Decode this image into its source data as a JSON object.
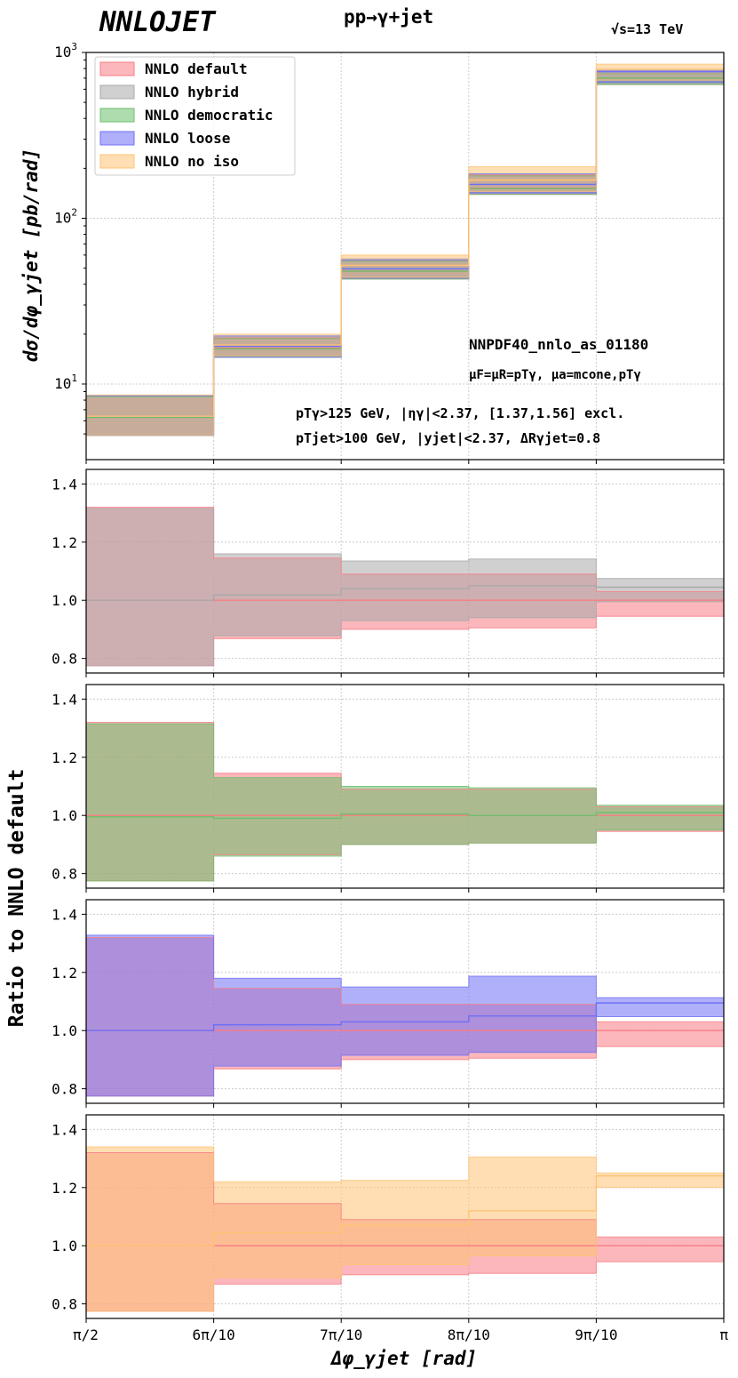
{
  "header": {
    "logo": "NNLOJET",
    "process": "pp→γ+jet",
    "energy": "√s=13 TeV"
  },
  "labels": {
    "main_ylabel": "dσ/dφ_γjet [pb/rad]",
    "ratio_ylabel": "Ratio to NNLO default",
    "xlabel": "Δφ_γjet [rad]",
    "pdf": "NNPDF40_nnlo_as_01180",
    "scales": "μF=μR=pTγ, μa=mcone,pTγ",
    "cuts1": "pTγ>125 GeV, |ηγ|<2.37, [1.37,1.56] excl.",
    "cuts2": "pTjet>100 GeV, |yjet|<2.37, ΔRγjet=0.8"
  },
  "colors": {
    "default": "#f87c84",
    "hybrid": "#a9a9a9",
    "democratic": "#6cbf6c",
    "loose": "#6f6ff5",
    "noiso": "#ffc375"
  },
  "chart_data": [
    {
      "type": "area",
      "panel": "main",
      "x_edges_rad": [
        1.5708,
        1.885,
        2.1991,
        2.5133,
        2.8274,
        3.1416
      ],
      "x_tick_labels": [
        "π/2",
        "6π/10",
        "7π/10",
        "8π/10",
        "9π/10",
        "π"
      ],
      "yscale": "log",
      "ylim": [
        3.5,
        1000
      ],
      "y_tick_labels": [
        "10¹",
        "10²",
        "10³"
      ],
      "legend_position": "top-left",
      "series": [
        {
          "name": "NNLO default",
          "color_key": "default",
          "central": [
            6.4,
            16.5,
            48,
            152,
            700
          ],
          "low": [
            4.9,
            14.5,
            43,
            140,
            640
          ],
          "high": [
            8.5,
            19,
            56,
            182,
            745
          ]
        },
        {
          "name": "NNLO hybrid",
          "color_key": "hybrid",
          "central": [
            6.4,
            16.8,
            50,
            160,
            720
          ],
          "low": [
            4.9,
            14.5,
            43,
            141,
            645
          ],
          "high": [
            8.5,
            19.2,
            57,
            185,
            760
          ]
        },
        {
          "name": "NNLO democratic",
          "color_key": "democratic",
          "central": [
            6.3,
            16.3,
            48,
            151,
            700
          ],
          "low": [
            4.9,
            14.6,
            43,
            139,
            640
          ],
          "high": [
            8.4,
            18.8,
            55,
            180,
            745
          ]
        },
        {
          "name": "NNLO loose",
          "color_key": "loose",
          "central": [
            6.4,
            16.9,
            49.5,
            160,
            765
          ],
          "low": [
            4.9,
            14.5,
            43.5,
            142,
            660
          ],
          "high": [
            8.5,
            19.5,
            56,
            185,
            780
          ]
        },
        {
          "name": "NNLO no iso",
          "color_key": "noiso",
          "central": [
            6.4,
            17.2,
            52,
            170,
            790
          ],
          "low": [
            4.9,
            14.8,
            44,
            145,
            680
          ],
          "high": [
            8.6,
            20,
            60,
            205,
            850
          ]
        }
      ]
    },
    {
      "type": "area",
      "panel": "ratio-hybrid",
      "ylim": [
        0.75,
        1.45
      ],
      "y_ticks": [
        0.8,
        1.0,
        1.2,
        1.4
      ],
      "series": [
        {
          "name": "NNLO default",
          "color_key": "default",
          "central": [
            1.0,
            1.0,
            1.0,
            1.0,
            1.0
          ],
          "low": [
            0.775,
            0.868,
            0.9,
            0.905,
            0.945
          ],
          "high": [
            1.32,
            1.145,
            1.09,
            1.09,
            1.03
          ]
        },
        {
          "name": "NNLO hybrid",
          "color_key": "hybrid",
          "central": [
            1.0,
            1.018,
            1.04,
            1.05,
            1.045
          ],
          "low": [
            0.775,
            0.878,
            0.93,
            0.94,
            0.995
          ],
          "high": [
            1.315,
            1.16,
            1.135,
            1.142,
            1.075
          ]
        }
      ]
    },
    {
      "type": "area",
      "panel": "ratio-democratic",
      "ylim": [
        0.75,
        1.45
      ],
      "y_ticks": [
        0.8,
        1.0,
        1.2,
        1.4
      ],
      "series": [
        {
          "name": "NNLO default",
          "color_key": "default",
          "central": [
            1.0,
            1.0,
            1.0,
            1.0,
            1.0
          ],
          "low": [
            0.775,
            0.865,
            0.9,
            0.905,
            0.945
          ],
          "high": [
            1.32,
            1.145,
            1.09,
            1.09,
            1.03
          ]
        },
        {
          "name": "NNLO democratic",
          "color_key": "democratic",
          "central": [
            0.995,
            0.99,
            1.005,
            1.0,
            1.01
          ],
          "low": [
            0.775,
            0.86,
            0.9,
            0.905,
            0.95
          ],
          "high": [
            1.315,
            1.13,
            1.1,
            1.095,
            1.035
          ]
        }
      ]
    },
    {
      "type": "area",
      "panel": "ratio-loose",
      "ylim": [
        0.75,
        1.45
      ],
      "y_ticks": [
        0.8,
        1.0,
        1.2,
        1.4
      ],
      "series": [
        {
          "name": "NNLO default",
          "color_key": "default",
          "central": [
            1.0,
            1.0,
            1.0,
            1.0,
            1.0
          ],
          "low": [
            0.775,
            0.868,
            0.9,
            0.905,
            0.945
          ],
          "high": [
            1.32,
            1.145,
            1.09,
            1.09,
            1.03
          ]
        },
        {
          "name": "NNLO loose",
          "color_key": "loose",
          "central": [
            1.0,
            1.02,
            1.03,
            1.05,
            1.095
          ],
          "low": [
            0.775,
            0.878,
            0.915,
            0.925,
            1.048
          ],
          "high": [
            1.328,
            1.18,
            1.15,
            1.187,
            1.113
          ]
        }
      ]
    },
    {
      "type": "area",
      "panel": "ratio-noiso",
      "ylim": [
        0.75,
        1.45
      ],
      "y_ticks": [
        0.8,
        1.0,
        1.2,
        1.4
      ],
      "series": [
        {
          "name": "NNLO default",
          "color_key": "default",
          "central": [
            1.0,
            1.0,
            1.0,
            1.0,
            1.0
          ],
          "low": [
            0.775,
            0.868,
            0.9,
            0.905,
            0.945
          ],
          "high": [
            1.32,
            1.145,
            1.09,
            1.09,
            1.03
          ]
        },
        {
          "name": "NNLO no iso",
          "color_key": "noiso",
          "central": [
            1.0,
            1.045,
            1.07,
            1.12,
            1.24
          ],
          "low": [
            0.775,
            0.89,
            0.935,
            0.965,
            1.2
          ],
          "high": [
            1.34,
            1.22,
            1.225,
            1.305,
            1.25
          ]
        }
      ]
    }
  ]
}
